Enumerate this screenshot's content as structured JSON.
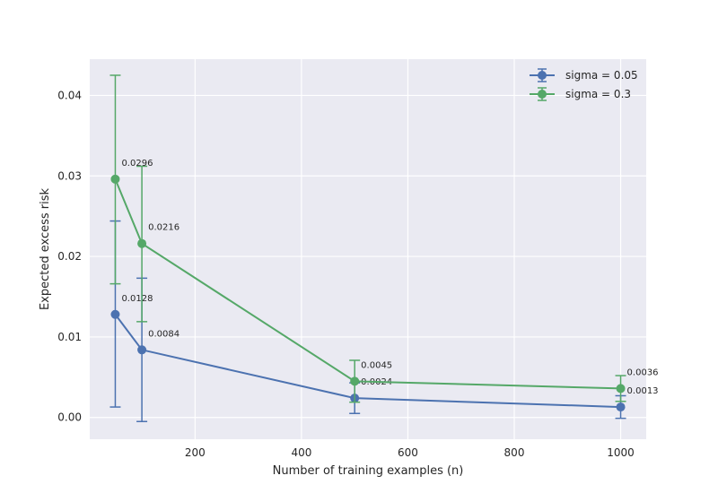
{
  "chart_data": {
    "type": "line",
    "title": "",
    "xlabel": "Number of training examples (n)",
    "ylabel": "Expected excess risk",
    "x": [
      50,
      100,
      500,
      1000
    ],
    "xlim": [
      2,
      1048
    ],
    "ylim": [
      -0.0027,
      0.0445
    ],
    "xticks": [
      200,
      400,
      600,
      800,
      1000
    ],
    "yticks": [
      0.0,
      0.01,
      0.02,
      0.03,
      0.04
    ],
    "ytick_labels": [
      "0.00",
      "0.01",
      "0.02",
      "0.03",
      "0.04"
    ],
    "grid": true,
    "legend_position": "top-right",
    "series": [
      {
        "name": "sigma = 0.05",
        "color": "#4c72b0",
        "values": [
          0.0128,
          0.0084,
          0.0024,
          0.0013
        ],
        "error_low": [
          0.0013,
          -0.0005,
          0.0005,
          -0.0001
        ],
        "error_high": [
          0.0244,
          0.0173,
          0.0043,
          0.0027
        ],
        "labels": [
          "0.0128",
          "0.0084",
          "0.0024",
          "0.0013"
        ]
      },
      {
        "name": "sigma = 0.3",
        "color": "#55a868",
        "values": [
          0.0296,
          0.0216,
          0.0045,
          0.0036
        ],
        "error_low": [
          0.0166,
          0.0119,
          0.0019,
          0.002
        ],
        "error_high": [
          0.0425,
          0.0312,
          0.0071,
          0.0052
        ],
        "labels": [
          "0.0296",
          "0.0216",
          "0.0045",
          "0.0036"
        ]
      }
    ]
  }
}
